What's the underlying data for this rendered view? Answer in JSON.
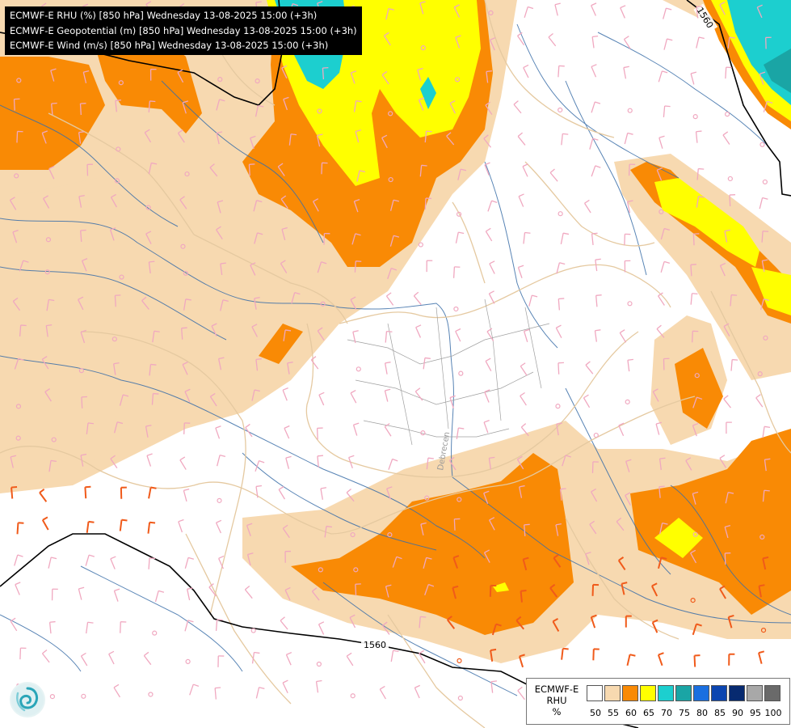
{
  "title_lines": [
    "ECMWF-E RHU (%) [850 hPa] Wednesday 13-08-2025 15:00 (+3h)",
    "ECMWF-E Geopotential (m) [850 hPa] Wednesday 13-08-2025 15:00 (+3h)",
    "ECMWF-E Wind (m/s) [850 hPa] Wednesday 13-08-2025 15:00 (+3h)"
  ],
  "contour_labels": [
    "1560",
    "1560"
  ],
  "place_label": "Debrecen",
  "legend": {
    "title_line1": "ECMWF-E",
    "title_line2": "RHU",
    "unit": "%",
    "ticks": [
      "50",
      "55",
      "60",
      "65",
      "70",
      "75",
      "80",
      "85",
      "90",
      "95",
      "100"
    ],
    "colors": [
      "#ffffff",
      "#f7d9b0",
      "#f98a05",
      "#ffff00",
      "#1ccfcf",
      "#1aa5a5",
      "#1a6fe0",
      "#0b45b0",
      "#072a70",
      "#a8a8a8",
      "#6a6a6a"
    ]
  },
  "colors": {
    "cream": "#f7d9b0",
    "orange": "#f98a05",
    "yellow": "#ffff00",
    "cyan": "#1ccfcf",
    "teal": "#1aa5a5",
    "river": "#3a6ea8",
    "border": "#e5c9a0",
    "wind_pink": "#f0a8c0",
    "wind_red": "#f05a1a"
  },
  "logo_icon": "ecmwf-swirl-icon"
}
